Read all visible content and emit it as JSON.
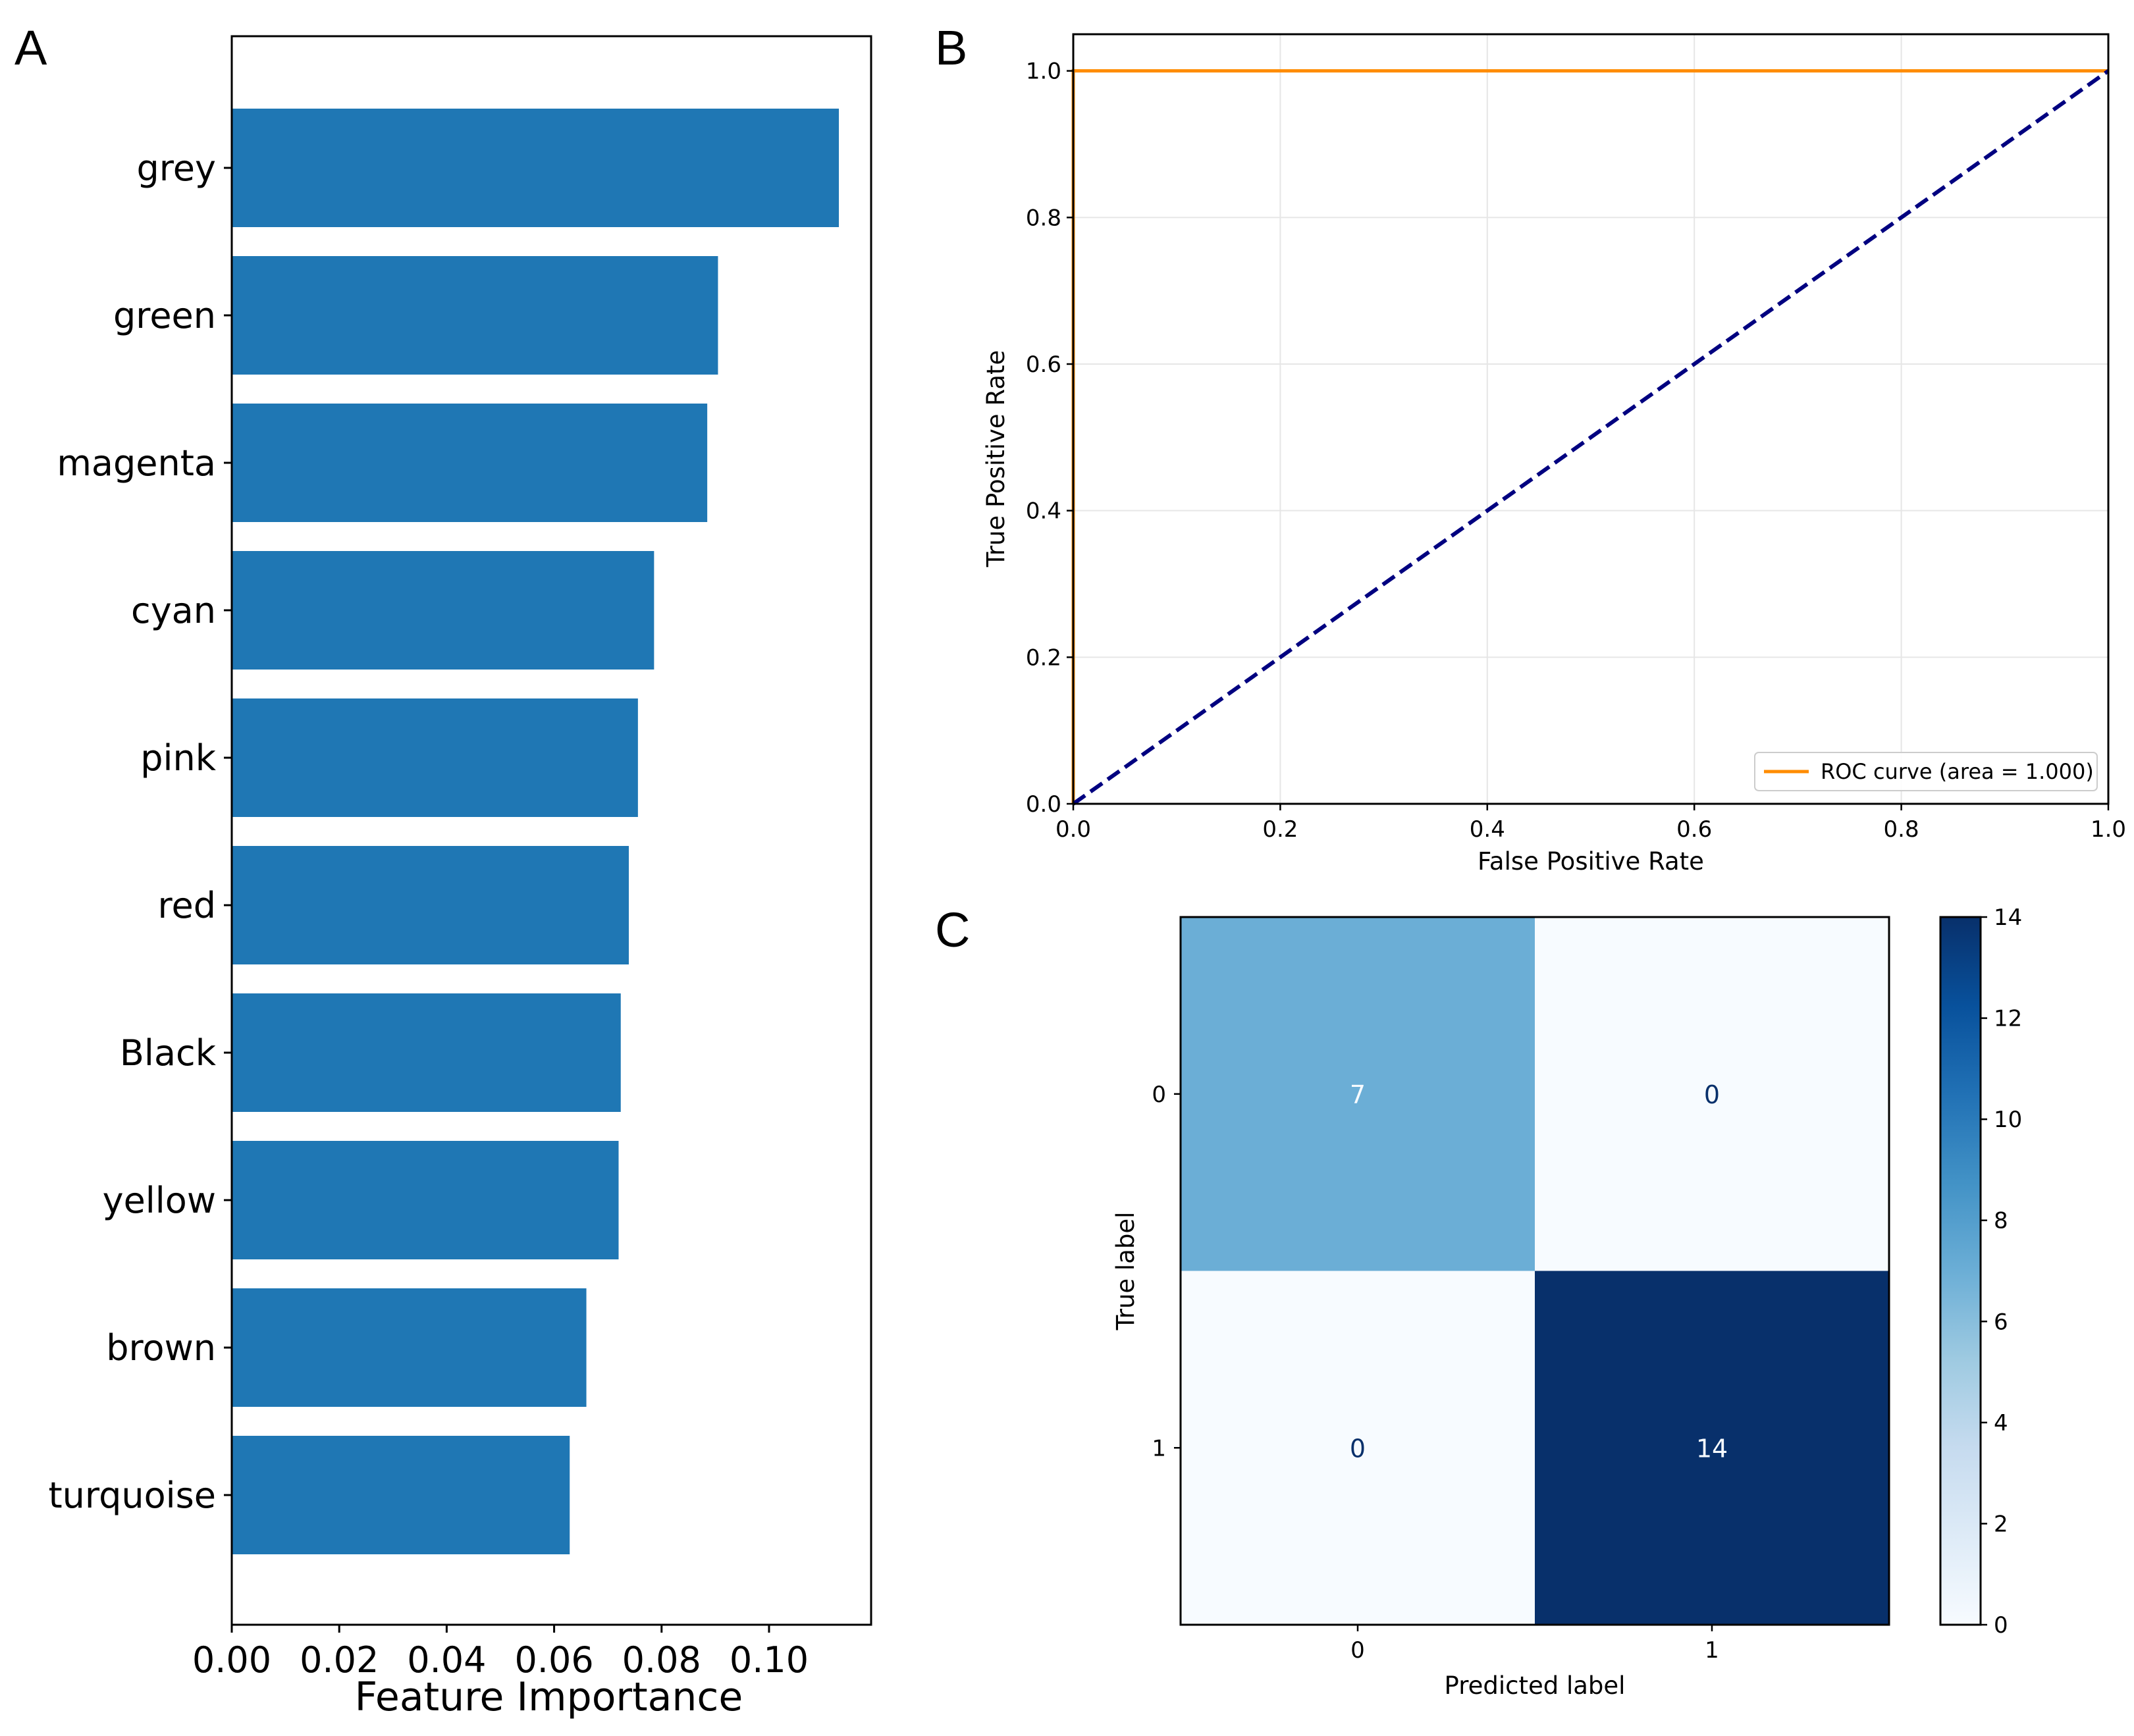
{
  "chart_data": [
    {
      "panel": "A",
      "type": "bar",
      "orientation": "horizontal",
      "categories": [
        "grey",
        "green",
        "magenta",
        "cyan",
        "pink",
        "red",
        "Black",
        "yellow",
        "brown",
        "turquoise"
      ],
      "values": [
        0.113,
        0.0905,
        0.0885,
        0.0786,
        0.0756,
        0.0739,
        0.0724,
        0.072,
        0.066,
        0.0629
      ],
      "xlabel": "Feature Importance",
      "xticks": [
        "0.00",
        "0.02",
        "0.04",
        "0.06",
        "0.08",
        "0.10"
      ],
      "xlim": [
        0,
        0.119
      ],
      "color": "#1f77b4",
      "grid": false
    },
    {
      "panel": "B",
      "type": "line",
      "xlabel": "False Positive Rate",
      "ylabel": "True Positive Rate",
      "xlim": [
        0,
        1
      ],
      "ylim": [
        0,
        1.05
      ],
      "xticks": [
        "0.0",
        "0.2",
        "0.4",
        "0.6",
        "0.8",
        "1.0"
      ],
      "yticks": [
        "0.0",
        "0.2",
        "0.4",
        "0.6",
        "0.8",
        "1.0"
      ],
      "grid": true,
      "legend_position": "lower-right",
      "series": [
        {
          "name": "ROC curve (area = 1.000)",
          "x": [
            0,
            0,
            1
          ],
          "y": [
            0,
            1,
            1
          ],
          "color": "#ff8c00",
          "style": "solid"
        },
        {
          "x": [
            0,
            1
          ],
          "y": [
            0,
            1
          ],
          "color": "#000080",
          "style": "dashed"
        }
      ]
    },
    {
      "panel": "C",
      "type": "heatmap",
      "xlabel": "Predicted label",
      "ylabel": "True label",
      "x_categories": [
        "0",
        "1"
      ],
      "y_categories": [
        "0",
        "1"
      ],
      "matrix": [
        [
          7,
          0
        ],
        [
          0,
          14
        ]
      ],
      "colormap": "Blues",
      "colorbar_ticks": [
        "0",
        "2",
        "4",
        "6",
        "8",
        "10",
        "12",
        "14"
      ],
      "colorbar_range": [
        0,
        14
      ]
    }
  ]
}
